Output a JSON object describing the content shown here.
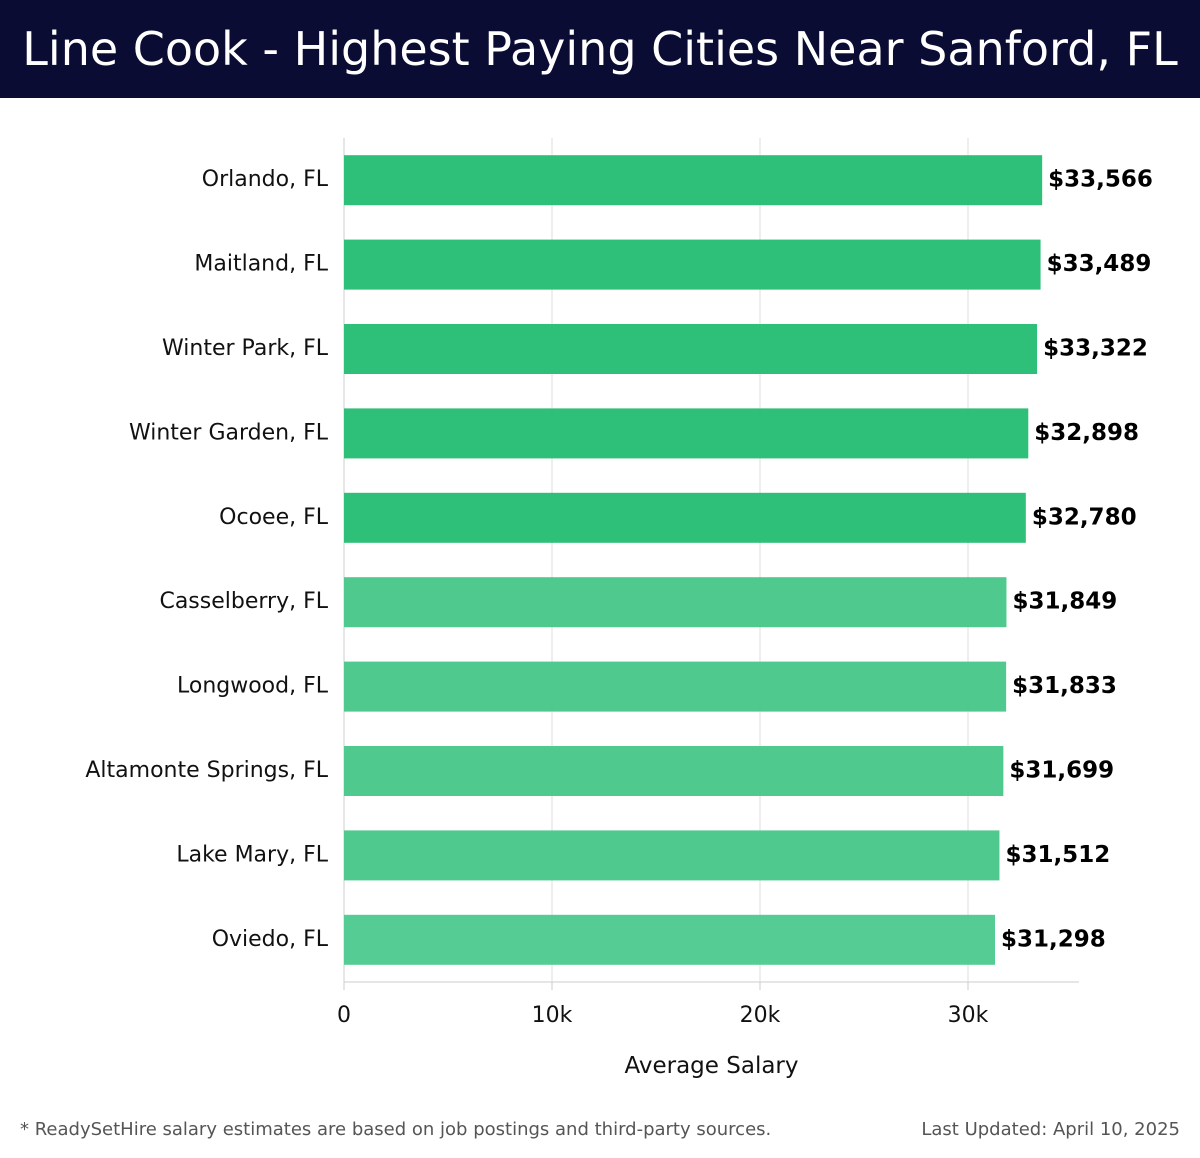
{
  "header": {
    "title": "Line Cook - Highest Paying Cities Near Sanford, FL"
  },
  "footer": {
    "note": "* ReadySetHire salary estimates are based on job postings and third-party sources.",
    "updated": "Last Updated: April 10, 2025"
  },
  "chart_data": {
    "type": "bar",
    "orientation": "horizontal",
    "title": "Line Cook - Highest Paying Cities Near Sanford, FL",
    "xlabel": "Average Salary",
    "ylabel": "",
    "xlim": [
      0,
      35000
    ],
    "x_ticks": [
      0,
      10000,
      20000,
      30000
    ],
    "x_tick_labels": [
      "0",
      "10k",
      "20k",
      "30k"
    ],
    "grid": true,
    "categories": [
      "Orlando, FL",
      "Maitland, FL",
      "Winter Park, FL",
      "Winter Garden, FL",
      "Ocoee, FL",
      "Casselberry, FL",
      "Longwood, FL",
      "Altamonte Springs, FL",
      "Lake Mary, FL",
      "Oviedo, FL"
    ],
    "values": [
      33566,
      33489,
      33322,
      32898,
      32780,
      31849,
      31833,
      31699,
      31512,
      31298
    ],
    "value_labels": [
      "$33,566",
      "$33,489",
      "$33,322",
      "$32,898",
      "$32,780",
      "$31,849",
      "$31,833",
      "$31,699",
      "$31,512",
      "$31,298"
    ],
    "bar_colors": [
      "#2ebf78",
      "#2ebf78",
      "#2ebf78",
      "#2ebf78",
      "#2ebf78",
      "#4fc98e",
      "#4fc98e",
      "#4fc98e",
      "#4fc98e",
      "#55cc93"
    ]
  }
}
